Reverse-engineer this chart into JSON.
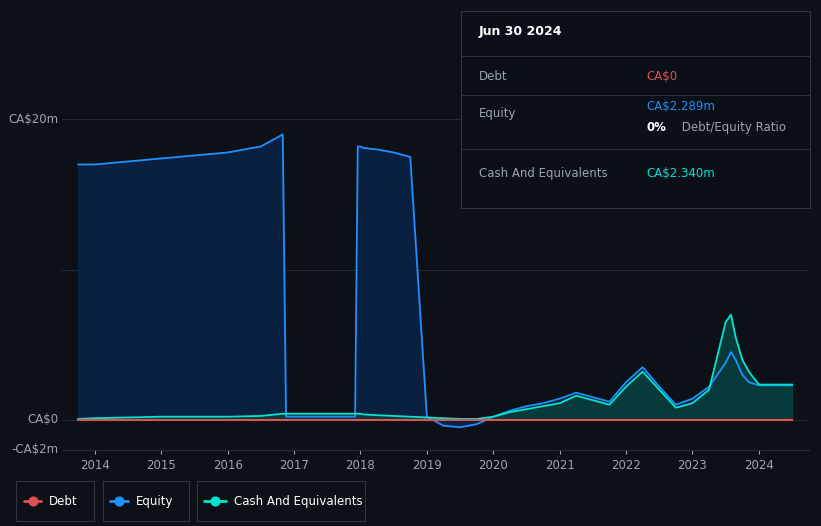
{
  "bg_color": "#0d1117",
  "plot_bg_color": "#0d1117",
  "grid_color": "#1e2d3d",
  "text_color": "#9aa5b1",
  "equity_color": "#1e90ff",
  "equity_fill": "#0a2040",
  "cash_color": "#00e5cc",
  "cash_fill": "#073a3a",
  "debt_color": "#e05050",
  "xlim": [
    2013.5,
    2024.75
  ],
  "ylim": [
    -2000000,
    22000000
  ],
  "xticks": [
    2014,
    2015,
    2016,
    2017,
    2018,
    2019,
    2020,
    2021,
    2022,
    2023,
    2024
  ],
  "dates": [
    2013.75,
    2014.0,
    2014.5,
    2015.0,
    2015.5,
    2016.0,
    2016.5,
    2016.83,
    2016.88,
    2017.0,
    2017.05,
    2017.5,
    2017.92,
    2017.96,
    2018.0,
    2018.05,
    2018.25,
    2018.5,
    2018.75,
    2019.0,
    2019.25,
    2019.5,
    2019.75,
    2020.0,
    2020.25,
    2020.5,
    2020.75,
    2021.0,
    2021.25,
    2021.5,
    2021.75,
    2022.0,
    2022.25,
    2022.5,
    2022.75,
    2023.0,
    2023.25,
    2023.5,
    2023.58,
    2023.65,
    2023.75,
    2023.85,
    2024.0,
    2024.25,
    2024.5
  ],
  "equity": [
    17000000,
    17000000,
    17200000,
    17400000,
    17600000,
    17800000,
    18200000,
    19000000,
    200000,
    200000,
    200000,
    200000,
    200000,
    18200000,
    18200000,
    18100000,
    18000000,
    17800000,
    17500000,
    200000,
    -400000,
    -500000,
    -300000,
    200000,
    600000,
    900000,
    1100000,
    1400000,
    1800000,
    1500000,
    1200000,
    2500000,
    3500000,
    2200000,
    1000000,
    1400000,
    2200000,
    3800000,
    4500000,
    4000000,
    3000000,
    2500000,
    2289000,
    2289000,
    2289000
  ],
  "cash": [
    50000,
    100000,
    150000,
    200000,
    200000,
    200000,
    250000,
    400000,
    400000,
    400000,
    400000,
    400000,
    400000,
    400000,
    400000,
    350000,
    300000,
    250000,
    200000,
    150000,
    100000,
    50000,
    50000,
    200000,
    500000,
    700000,
    900000,
    1100000,
    1600000,
    1300000,
    1000000,
    2200000,
    3200000,
    2000000,
    800000,
    1100000,
    2000000,
    6500000,
    7000000,
    5500000,
    4000000,
    3200000,
    2340000,
    2340000,
    2340000
  ],
  "debt": [
    0,
    0,
    0,
    0,
    0,
    0,
    0,
    0,
    0,
    0,
    0,
    0,
    0,
    0,
    0,
    0,
    0,
    0,
    0,
    0,
    0,
    0,
    0,
    0,
    0,
    0,
    0,
    0,
    0,
    0,
    0,
    0,
    0,
    0,
    0,
    0,
    0,
    0,
    0,
    0,
    0,
    0,
    0,
    0,
    0
  ]
}
